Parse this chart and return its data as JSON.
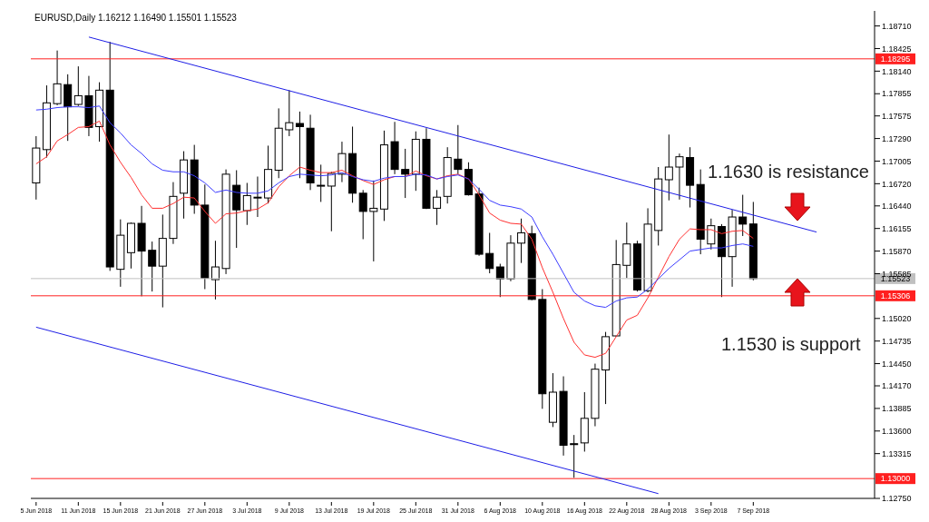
{
  "chart_data": {
    "type": "candlestick",
    "title": "EURUSD,Daily  1.16212 1.16490 1.15501 1.15523",
    "categories": [
      "5 Jun 2018",
      null,
      null,
      null,
      "11 Jun 2018",
      null,
      null,
      null,
      "15 Jun 2018",
      null,
      null,
      null,
      "21 Jun 2018",
      null,
      null,
      null,
      "27 Jun 2018",
      null,
      null,
      null,
      "3 Jul 2018",
      null,
      null,
      null,
      "9 Jul 2018",
      null,
      null,
      null,
      "13 Jul 2018",
      null,
      null,
      null,
      "19 Jul 2018",
      null,
      null,
      null,
      "25 Jul 2018",
      null,
      null,
      null,
      "31 Jul 2018",
      null,
      null,
      null,
      "6 Aug 2018",
      null,
      null,
      null,
      "10 Aug 2018",
      null,
      null,
      null,
      "16 Aug 2018",
      null,
      null,
      null,
      "22 Aug 2018",
      null,
      null,
      null,
      "28 Aug 2018",
      null,
      null,
      null,
      "3 Sep 2018",
      null,
      null,
      null,
      "7 Sep 2018",
      null,
      null,
      null,
      null,
      null,
      null,
      null,
      null,
      null,
      null,
      null
    ],
    "ohlc": [
      [
        1.1673,
        1.1732,
        1.1652,
        1.1717
      ],
      [
        1.1715,
        1.1796,
        1.1705,
        1.1774
      ],
      [
        1.1773,
        1.184,
        1.1771,
        1.1798
      ],
      [
        1.1797,
        1.181,
        1.1726,
        1.1769
      ],
      [
        1.1772,
        1.182,
        1.177,
        1.1783
      ],
      [
        1.1783,
        1.1808,
        1.1732,
        1.1743
      ],
      [
        1.1744,
        1.18,
        1.1725,
        1.179
      ],
      [
        1.179,
        1.1851,
        1.1562,
        1.1567
      ],
      [
        1.1564,
        1.1627,
        1.1542,
        1.1607
      ],
      [
        1.1585,
        1.1623,
        1.1565,
        1.1622
      ],
      [
        1.1622,
        1.1644,
        1.153,
        1.1587
      ],
      [
        1.1588,
        1.1599,
        1.1536,
        1.1568
      ],
      [
        1.1568,
        1.1633,
        1.1516,
        1.1603
      ],
      [
        1.1603,
        1.1674,
        1.1596,
        1.1656
      ],
      [
        1.166,
        1.1713,
        1.1628,
        1.1702
      ],
      [
        1.1702,
        1.1721,
        1.1634,
        1.1645
      ],
      [
        1.1645,
        1.1671,
        1.1539,
        1.1553
      ],
      [
        1.1551,
        1.16,
        1.1526,
        1.1567
      ],
      [
        1.1565,
        1.169,
        1.1558,
        1.1684
      ],
      [
        1.167,
        1.1689,
        1.1591,
        1.1639
      ],
      [
        1.1638,
        1.1673,
        1.162,
        1.1657
      ],
      [
        1.1655,
        1.1681,
        1.163,
        1.1655
      ],
      [
        1.1654,
        1.172,
        1.1647,
        1.169
      ],
      [
        1.1689,
        1.1767,
        1.1679,
        1.1742
      ],
      [
        1.174,
        1.179,
        1.1732,
        1.1749
      ],
      [
        1.1748,
        1.1763,
        1.1679,
        1.1744
      ],
      [
        1.1742,
        1.1759,
        1.1664,
        1.1673
      ],
      [
        1.167,
        1.1696,
        1.1649,
        1.167
      ],
      [
        1.1669,
        1.1687,
        1.1612,
        1.1685
      ],
      [
        1.1684,
        1.1725,
        1.1674,
        1.171
      ],
      [
        1.171,
        1.1744,
        1.1648,
        1.166
      ],
      [
        1.166,
        1.1664,
        1.1602,
        1.1637
      ],
      [
        1.1637,
        1.1676,
        1.1574,
        1.1641
      ],
      [
        1.164,
        1.1739,
        1.1625,
        1.1721
      ],
      [
        1.1725,
        1.175,
        1.1684,
        1.169
      ],
      [
        1.169,
        1.1716,
        1.1654,
        1.1684
      ],
      [
        1.1684,
        1.1738,
        1.1663,
        1.1728
      ],
      [
        1.1728,
        1.1742,
        1.164,
        1.1641
      ],
      [
        1.1641,
        1.1664,
        1.162,
        1.1655
      ],
      [
        1.1656,
        1.1718,
        1.1647,
        1.1705
      ],
      [
        1.1703,
        1.1746,
        1.1684,
        1.169
      ],
      [
        1.169,
        1.1699,
        1.1657,
        1.1658
      ],
      [
        1.1659,
        1.1667,
        1.1581,
        1.1583
      ],
      [
        1.1584,
        1.161,
        1.1559,
        1.1565
      ],
      [
        1.1567,
        1.1571,
        1.1529,
        1.1552
      ],
      [
        1.1552,
        1.1607,
        1.1549,
        1.1597
      ],
      [
        1.1597,
        1.1628,
        1.1572,
        1.161
      ],
      [
        1.1609,
        1.1619,
        1.1525,
        1.1526
      ],
      [
        1.1526,
        1.1539,
        1.1388,
        1.1407
      ],
      [
        1.1371,
        1.1433,
        1.1365,
        1.1409
      ],
      [
        1.141,
        1.1429,
        1.1329,
        1.1342
      ],
      [
        1.1344,
        1.1355,
        1.1301,
        1.1343
      ],
      [
        1.1345,
        1.1409,
        1.1334,
        1.1376
      ],
      [
        1.1376,
        1.1445,
        1.1366,
        1.1438
      ],
      [
        1.1437,
        1.1485,
        1.1394,
        1.1479
      ],
      [
        1.148,
        1.1601,
        1.1479,
        1.157
      ],
      [
        1.1569,
        1.1623,
        1.1553,
        1.1596
      ],
      [
        1.1596,
        1.16,
        1.1536,
        1.1538
      ],
      [
        1.1537,
        1.1641,
        1.1535,
        1.1621
      ],
      [
        1.1613,
        1.1693,
        1.1594,
        1.1678
      ],
      [
        1.1677,
        1.1734,
        1.1651,
        1.1693
      ],
      [
        1.1693,
        1.171,
        1.1652,
        1.1706
      ],
      [
        1.1705,
        1.1718,
        1.1642,
        1.167
      ],
      [
        1.1671,
        1.169,
        1.1583,
        1.1602
      ],
      [
        1.1596,
        1.1628,
        1.1589,
        1.1619
      ],
      [
        1.1618,
        1.1621,
        1.1529,
        1.158
      ],
      [
        1.158,
        1.1639,
        1.1542,
        1.163
      ],
      [
        1.163,
        1.1658,
        1.1606,
        1.1621
      ],
      [
        1.16212,
        1.1649,
        1.15501,
        1.15523
      ],
      null,
      null,
      null,
      null,
      null,
      null,
      null,
      null,
      null,
      null,
      null
    ],
    "series": [
      {
        "type": "line",
        "color": "#ff3030",
        "values": [
          1.1697,
          1.1706,
          1.1726,
          1.1734,
          1.1743,
          1.1744,
          1.1751,
          1.1721,
          1.1699,
          1.168,
          1.1658,
          1.1641,
          1.1641,
          1.1647,
          1.1655,
          1.1654,
          1.1637,
          1.1622,
          1.1634,
          1.1635,
          1.1638,
          1.164,
          1.1648,
          1.1668,
          1.1682,
          1.1693,
          1.1689,
          1.1686,
          1.1686,
          1.1689,
          1.1682,
          1.1676,
          1.1671,
          1.1677,
          1.1681,
          1.1681,
          1.1688,
          1.1682,
          1.1678,
          1.1682,
          1.1684,
          1.1678,
          1.1658,
          1.1635,
          1.1626,
          1.1622,
          1.1621,
          1.1602,
          1.1566,
          1.1535,
          1.1502,
          1.1472,
          1.1456,
          1.1453,
          1.1458,
          1.1479,
          1.15,
          1.1506,
          1.1528,
          1.1554,
          1.158,
          1.1602,
          1.1615,
          1.1614,
          1.1614,
          1.1609,
          1.1612,
          1.1613,
          1.1603,
          null,
          null,
          null,
          null,
          null,
          null,
          null,
          null,
          null,
          null,
          null
        ]
      },
      {
        "type": "line",
        "color": "#3c3cff",
        "values": [
          1.1765,
          1.1766,
          1.1768,
          1.1769,
          1.1769,
          1.1768,
          1.177,
          1.1749,
          1.1736,
          1.1721,
          1.171,
          1.1697,
          1.1689,
          1.1687,
          1.1687,
          1.1682,
          1.1673,
          1.1661,
          1.1664,
          1.1661,
          1.166,
          1.166,
          1.1663,
          1.1673,
          1.1681,
          1.1684,
          1.1683,
          1.1682,
          1.1683,
          1.1686,
          1.1681,
          1.1677,
          1.1675,
          1.1679,
          1.1681,
          1.1681,
          1.1684,
          1.1683,
          1.1678,
          1.1681,
          1.1683,
          1.1678,
          1.1665,
          1.1651,
          1.1645,
          1.1643,
          1.164,
          1.163,
          1.1605,
          1.1583,
          1.1559,
          1.1535,
          1.1524,
          1.1518,
          1.1516,
          1.1524,
          1.1528,
          1.1529,
          1.1539,
          1.1552,
          1.1565,
          1.1576,
          1.1587,
          1.1589,
          1.1591,
          1.1591,
          1.1594,
          1.1596,
          1.1593,
          null,
          null,
          null,
          null,
          null,
          null,
          null,
          null,
          null,
          null,
          null
        ]
      },
      {
        "type": "line",
        "color": "#1e1ee6",
        "values": [
          null,
          null,
          null,
          null,
          null,
          1.1857,
          null,
          null,
          null,
          null,
          null,
          null,
          null,
          null,
          null,
          null,
          null,
          null,
          null,
          null,
          null,
          null,
          null,
          null,
          null,
          null,
          null,
          null,
          null,
          null,
          null,
          null,
          null,
          null,
          null,
          null,
          null,
          null,
          null,
          null,
          null,
          null,
          null,
          null,
          null,
          null,
          null,
          null,
          null,
          null,
          null,
          null,
          null,
          null,
          null,
          null,
          null,
          null,
          null,
          null,
          null,
          null,
          null,
          null,
          null,
          null,
          null,
          null,
          null,
          null,
          null,
          null,
          null,
          null,
          1.1611,
          null,
          null,
          null,
          null,
          null
        ]
      },
      {
        "type": "line",
        "color": "#1e1ee6",
        "values": [
          1.1491,
          null,
          null,
          null,
          null,
          null,
          null,
          null,
          null,
          null,
          null,
          null,
          null,
          null,
          null,
          null,
          null,
          null,
          null,
          null,
          null,
          null,
          null,
          null,
          null,
          null,
          null,
          null,
          null,
          null,
          null,
          null,
          null,
          null,
          null,
          null,
          null,
          null,
          null,
          null,
          null,
          null,
          null,
          null,
          null,
          null,
          null,
          null,
          null,
          null,
          null,
          null,
          null,
          null,
          null,
          null,
          null,
          null,
          null,
          1.1281,
          null,
          null,
          null,
          null,
          null,
          null,
          null,
          null,
          null,
          null,
          null,
          null,
          null,
          null,
          null,
          null,
          null,
          null,
          null,
          null
        ]
      }
    ],
    "ylim": [
      1.1275,
      1.189
    ],
    "yticks": [
      {
        "value": 1.1871,
        "label": "1.18710"
      },
      {
        "value": 1.18425,
        "label": "1.18425"
      },
      {
        "value": 1.1814,
        "label": "1.18140"
      },
      {
        "value": 1.17855,
        "label": "1.17855"
      },
      {
        "value": 1.17575,
        "label": "1.17575"
      },
      {
        "value": 1.1729,
        "label": "1.17290"
      },
      {
        "value": 1.17005,
        "label": "1.17005"
      },
      {
        "value": 1.1672,
        "label": "1.16720"
      },
      {
        "value": 1.1644,
        "label": "1.16440"
      },
      {
        "value": 1.16155,
        "label": "1.16155"
      },
      {
        "value": 1.1587,
        "label": "1.15870"
      },
      {
        "value": 1.15585,
        "label": "1.15585"
      },
      {
        "value": 1.1502,
        "label": "1.15020"
      },
      {
        "value": 1.14735,
        "label": "1.14735"
      },
      {
        "value": 1.1445,
        "label": "1.14450"
      },
      {
        "value": 1.1417,
        "label": "1.14170"
      },
      {
        "value": 1.13885,
        "label": "1.13885"
      },
      {
        "value": 1.136,
        "label": "1.13600"
      },
      {
        "value": 1.13315,
        "label": "1.13315"
      },
      {
        "value": 1.1275,
        "label": "1.12750"
      }
    ],
    "ref_lines": [
      {
        "axis": "y",
        "value": 1.18295,
        "label": "1.18295",
        "color": "#ff2020"
      },
      {
        "axis": "y",
        "value": 1.15306,
        "label": "1.15306",
        "color": "#ff2020"
      },
      {
        "axis": "y",
        "value": 1.13,
        "label": "1.13000",
        "color": "#ff2020"
      },
      {
        "axis": "y",
        "value": 1.15523,
        "label": "1.15523",
        "color": "#c0c0c0"
      }
    ],
    "annotations": [
      "1.1630 is resistance",
      "1.1530 is support"
    ]
  }
}
